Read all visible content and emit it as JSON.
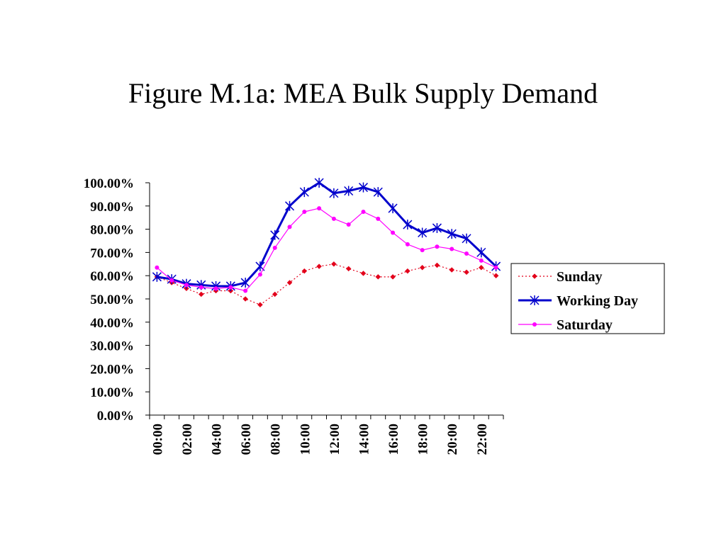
{
  "slide": {
    "title": "Figure M.1a: MEA Bulk Supply Demand"
  },
  "chart_data": {
    "type": "line",
    "title": "",
    "xlabel": "",
    "ylabel": "",
    "ylim": [
      0,
      100
    ],
    "y_tick_values": [
      0,
      10,
      20,
      30,
      40,
      50,
      60,
      70,
      80,
      90,
      100
    ],
    "y_tick_labels": [
      "0.00%",
      "10.00%",
      "20.00%",
      "30.00%",
      "40.00%",
      "50.00%",
      "60.00%",
      "70.00%",
      "80.00%",
      "90.00%",
      "100.00%"
    ],
    "x": [
      "00:00",
      "01:00",
      "02:00",
      "03:00",
      "04:00",
      "05:00",
      "06:00",
      "07:00",
      "08:00",
      "09:00",
      "10:00",
      "11:00",
      "12:00",
      "13:00",
      "14:00",
      "15:00",
      "16:00",
      "17:00",
      "18:00",
      "19:00",
      "20:00",
      "21:00",
      "22:00",
      "23:00"
    ],
    "x_tick_labels": [
      "00:00",
      "02:00",
      "04:00",
      "06:00",
      "08:00",
      "10:00",
      "12:00",
      "14:00",
      "16:00",
      "18:00",
      "20:00",
      "22:00"
    ],
    "grid": false,
    "legend_position": "right",
    "series": [
      {
        "name": "Sunday",
        "color": "#e3001b",
        "style": "dotted",
        "marker": "diamond",
        "values": [
          59.5,
          57,
          54.5,
          52,
          53.5,
          53.5,
          50,
          47.5,
          52,
          57,
          62,
          64,
          65,
          63,
          61,
          59.5,
          59.5,
          62,
          63.5,
          64.5,
          62.5,
          61.5,
          63.5,
          60
        ]
      },
      {
        "name": "Working Day",
        "color": "#0000cc",
        "style": "solid-thick",
        "marker": "asterisk",
        "values": [
          59.5,
          58.5,
          56.5,
          56,
          55.5,
          55.5,
          57,
          64,
          77.5,
          90,
          96,
          100,
          95.5,
          96.5,
          98,
          96,
          89,
          82,
          78.5,
          80.5,
          78,
          76,
          70,
          64
        ]
      },
      {
        "name": "Saturday",
        "color": "#ff00ff",
        "style": "solid-thin",
        "marker": "circle",
        "values": [
          63.5,
          58,
          56,
          55,
          54.5,
          55,
          53.5,
          60.5,
          72,
          81,
          87.5,
          89,
          84.5,
          82,
          87.5,
          84.5,
          78.5,
          73.5,
          71,
          72.5,
          71.5,
          69.5,
          66.5,
          63.5
        ]
      }
    ]
  }
}
